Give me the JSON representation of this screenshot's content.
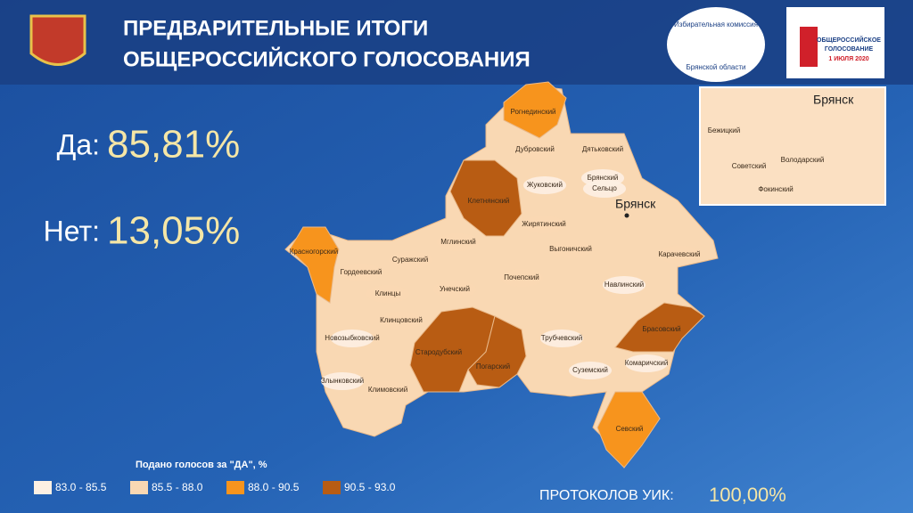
{
  "header": {
    "title_lines": [
      "ПРЕДВАРИТЕЛЬНЫЕ ИТОГИ",
      "ОБЩЕРОССИЙСКОГО ГОЛОСОВАНИЯ"
    ]
  },
  "logos": {
    "commission": [
      "Избирательная комиссия",
      "Брянской области"
    ],
    "vote": [
      "ОБЩЕРОССИЙСКОЕ",
      "ГОЛОСОВАНИЕ",
      "1 ИЮЛЯ 2020"
    ]
  },
  "results": [
    {
      "label": "Да:",
      "value": "85,81%"
    },
    {
      "label": "Нет:",
      "value": "13,05%"
    }
  ],
  "map": {
    "city": "Брянск",
    "districts": [
      {
        "name": "Рогнединский",
        "color": "#f7941d"
      },
      {
        "name": "Дубровский",
        "color": "#f9d8b3"
      },
      {
        "name": "Дятьковский",
        "color": "#f9d8b3"
      },
      {
        "name": "Жуковский",
        "color": "#fdf0e3"
      },
      {
        "name": "Брянский",
        "color": "#fdf0e3"
      },
      {
        "name": "Сельцо",
        "color": "#fdf0e3"
      },
      {
        "name": "Клетнянский",
        "color": "#b85c13"
      },
      {
        "name": "Жирятинский",
        "color": "#f9d8b3"
      },
      {
        "name": "Красногорский",
        "color": "#f7941d"
      },
      {
        "name": "Мглинский",
        "color": "#f9d8b3"
      },
      {
        "name": "Выгоничский",
        "color": "#f9d8b3"
      },
      {
        "name": "Карачевский",
        "color": "#f9d8b3"
      },
      {
        "name": "Гордеевский",
        "color": "#f9d8b3"
      },
      {
        "name": "Суражский",
        "color": "#f9d8b3"
      },
      {
        "name": "Почепский",
        "color": "#f9d8b3"
      },
      {
        "name": "Клинцы",
        "color": "#f9d8b3"
      },
      {
        "name": "Унечский",
        "color": "#f9d8b3"
      },
      {
        "name": "Навлинский",
        "color": "#fdf0e3"
      },
      {
        "name": "Клинцовский",
        "color": "#f9d8b3"
      },
      {
        "name": "Стародубский",
        "color": "#b85c13"
      },
      {
        "name": "Погарский",
        "color": "#b85c13"
      },
      {
        "name": "Трубчевский",
        "color": "#fdf0e3"
      },
      {
        "name": "Брасовский",
        "color": "#b85c13"
      },
      {
        "name": "Новозыбковский",
        "color": "#fdf0e3"
      },
      {
        "name": "Суземский",
        "color": "#fdf0e3"
      },
      {
        "name": "Комаричский",
        "color": "#fdf0e3"
      },
      {
        "name": "Злынковский",
        "color": "#fdf0e3"
      },
      {
        "name": "Климовский",
        "color": "#f9d8b3"
      },
      {
        "name": "Севский",
        "color": "#f7941d"
      }
    ],
    "inset": {
      "title": "Брянск",
      "districts": [
        "Бежицкий",
        "Советский",
        "Володарский",
        "Фокинский"
      ]
    }
  },
  "legend": {
    "title": "Подано голосов за \"ДА\", %",
    "items": [
      {
        "label": "83.0 - 85.5",
        "color": "#fdf0e3"
      },
      {
        "label": "85.5 - 88.0",
        "color": "#f9d8b3"
      },
      {
        "label": "88.0 - 90.5",
        "color": "#f7941d"
      },
      {
        "label": "90.5 - 93.0",
        "color": "#b85c13"
      }
    ]
  },
  "footer": {
    "label": "ПРОТОКОЛОВ УИК:",
    "value": "100,00%"
  }
}
